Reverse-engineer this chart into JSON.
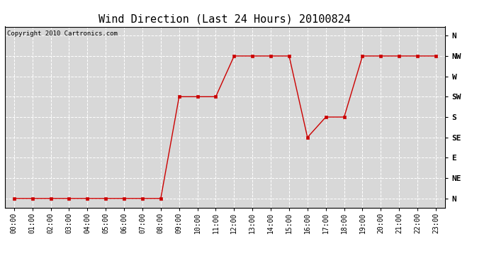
{
  "title": "Wind Direction (Last 24 Hours) 20100824",
  "copyright": "Copyright 2010 Cartronics.com",
  "x_labels": [
    "00:00",
    "01:00",
    "02:00",
    "03:00",
    "04:00",
    "05:00",
    "06:00",
    "07:00",
    "08:00",
    "09:00",
    "10:00",
    "11:00",
    "12:00",
    "13:00",
    "14:00",
    "15:00",
    "16:00",
    "17:00",
    "18:00",
    "19:00",
    "20:00",
    "21:00",
    "22:00",
    "23:00"
  ],
  "y_ticks": [
    0,
    45,
    90,
    135,
    180,
    225,
    270,
    315,
    360
  ],
  "y_labels": [
    "N",
    "NE",
    "E",
    "SE",
    "S",
    "SW",
    "W",
    "NW",
    "N"
  ],
  "y_min": -20,
  "y_max": 380,
  "data": [
    [
      0,
      0
    ],
    [
      1,
      0
    ],
    [
      2,
      0
    ],
    [
      3,
      0
    ],
    [
      4,
      0
    ],
    [
      5,
      0
    ],
    [
      6,
      0
    ],
    [
      7,
      0
    ],
    [
      8,
      0
    ],
    [
      9,
      225
    ],
    [
      10,
      225
    ],
    [
      11,
      225
    ],
    [
      12,
      315
    ],
    [
      13,
      315
    ],
    [
      14,
      315
    ],
    [
      15,
      315
    ],
    [
      16,
      135
    ],
    [
      17,
      180
    ],
    [
      18,
      180
    ],
    [
      19,
      315
    ],
    [
      20,
      315
    ],
    [
      21,
      315
    ],
    [
      22,
      315
    ],
    [
      23,
      315
    ]
  ],
  "line_color": "#cc0000",
  "marker": "s",
  "marker_size": 2.5,
  "bg_color": "#ffffff",
  "plot_bg_color": "#d8d8d8",
  "grid_color": "#ffffff",
  "title_fontsize": 11,
  "tick_fontsize": 7,
  "copyright_fontsize": 6.5,
  "figsize": [
    6.9,
    3.75
  ],
  "dpi": 100
}
